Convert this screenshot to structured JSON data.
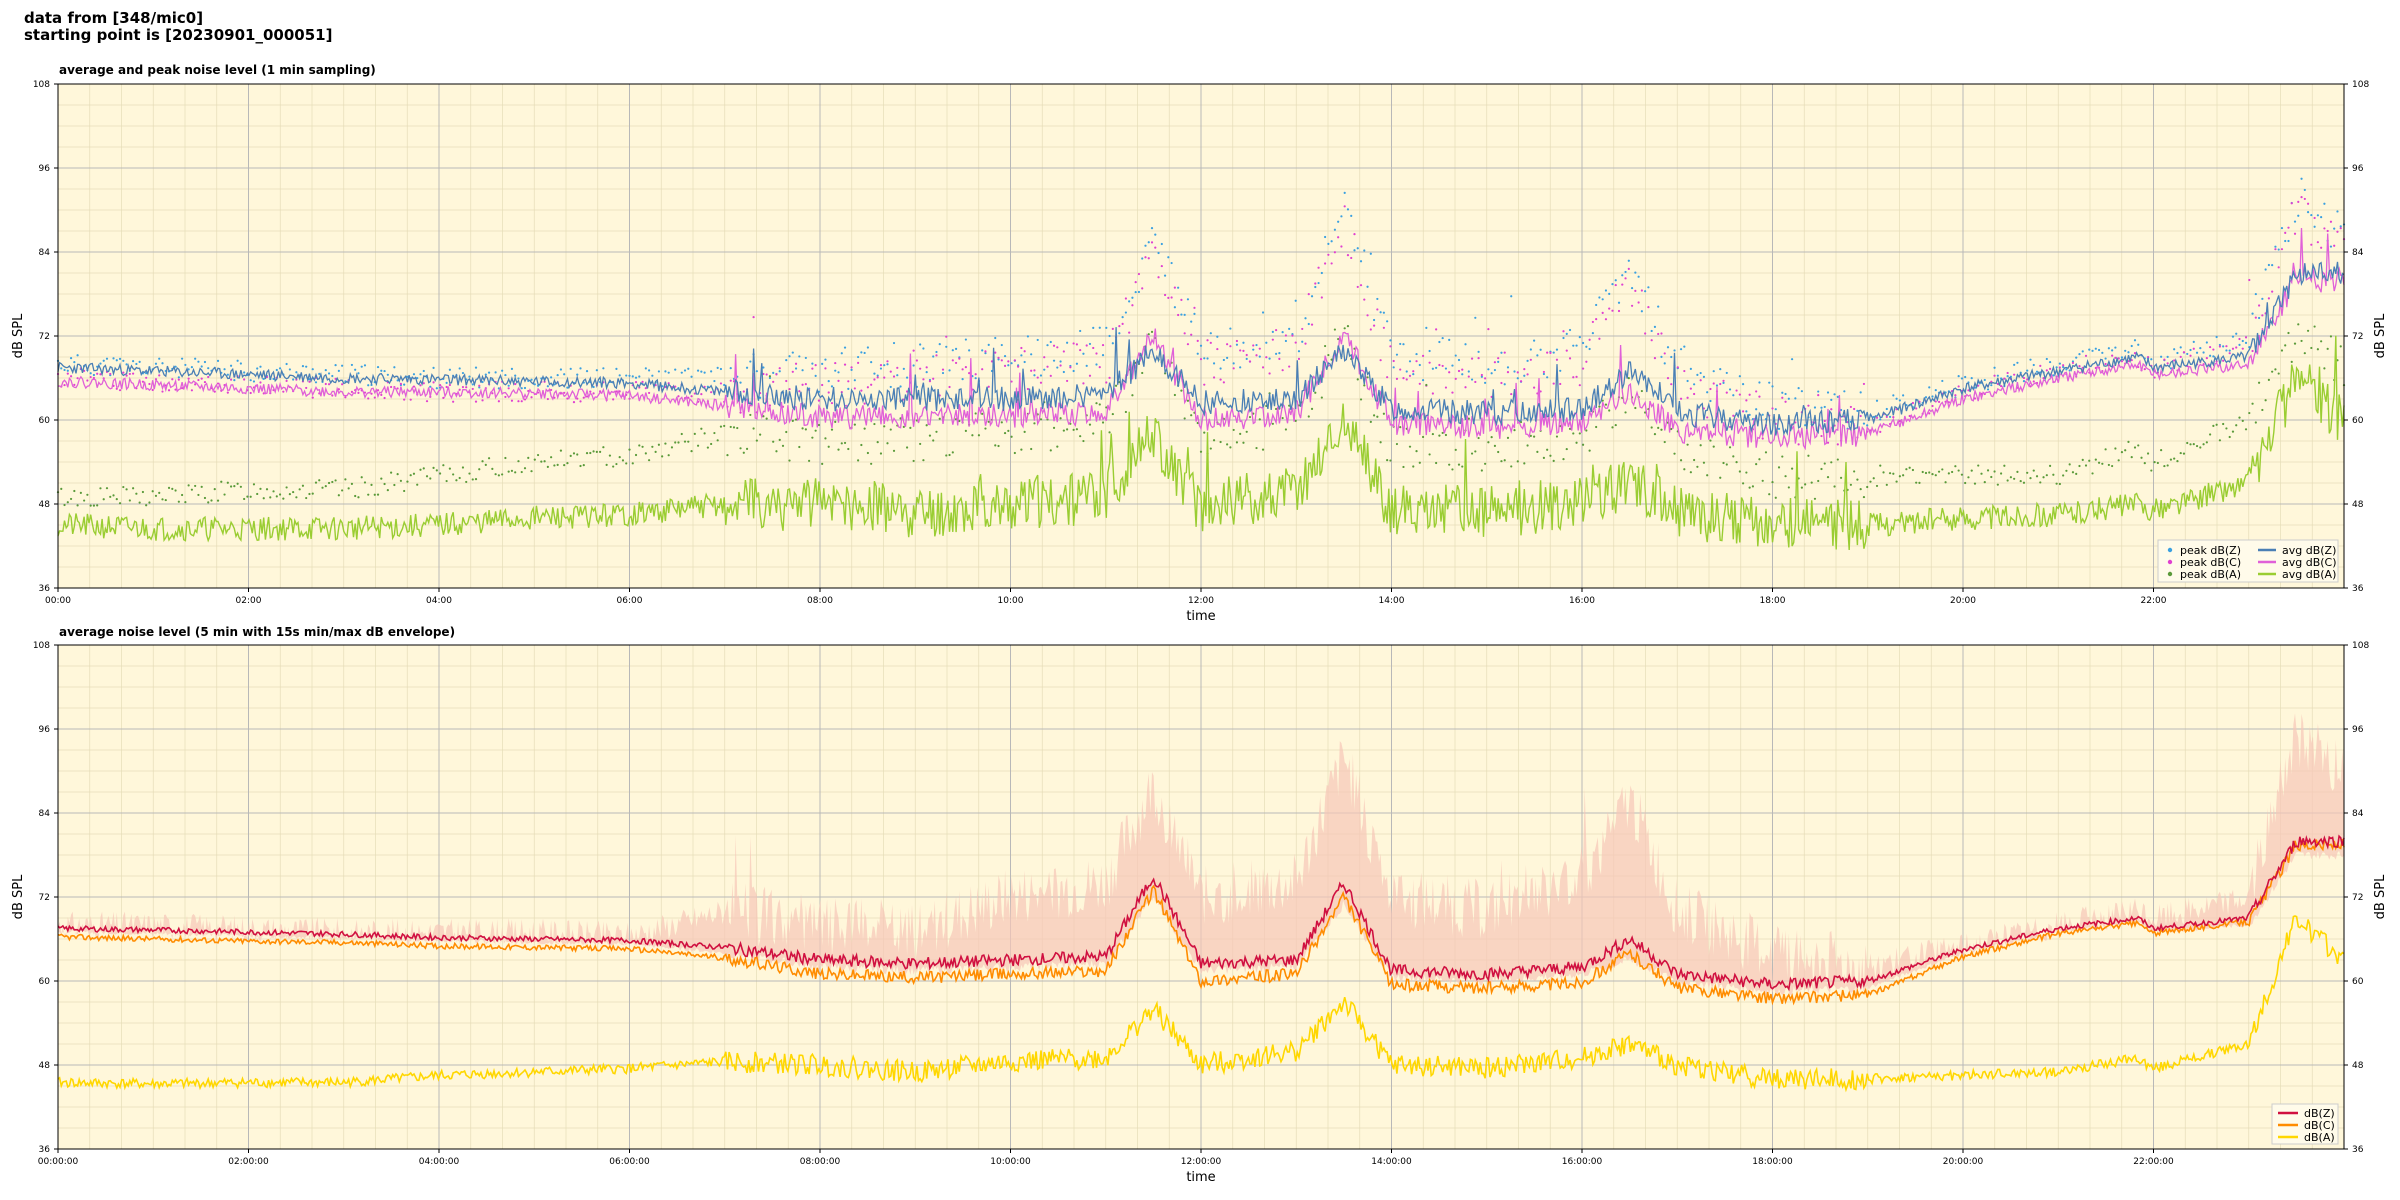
{
  "header": {
    "line1": "data from [348/mic0]",
    "line2": "starting point is [20230901_000051]"
  },
  "colors": {
    "plot_bg": "#fff7da",
    "grid_major": "#b8b8b8",
    "grid_minor": "#e6ddb8",
    "peakZ": "#3aa0e0",
    "peakC": "#e040d0",
    "peakA": "#5a9a3a",
    "avgZ": "#4a7fb5",
    "avgC": "#e060d8",
    "avgA": "#9acd32",
    "z5": "#d01040",
    "c5": "#ff8c00",
    "a5": "#ffd700",
    "envelope": "#f7c6b8"
  },
  "chart_data": [
    {
      "type": "line",
      "title": "average and peak noise level (1 min sampling)",
      "xlabel": "time",
      "ylabel": "dB SPL",
      "ylim": [
        36,
        108
      ],
      "yticks": [
        36,
        48,
        60,
        72,
        84,
        96,
        108
      ],
      "xlim_hours": [
        0,
        24
      ],
      "xticks": [
        "00:00",
        "02:00",
        "04:00",
        "06:00",
        "08:00",
        "10:00",
        "12:00",
        "14:00",
        "16:00",
        "18:00",
        "20:00",
        "22:00"
      ],
      "grid": true,
      "legend_position": "lower-right",
      "legend": [
        "peak dB(Z)",
        "peak dB(C)",
        "peak dB(A)",
        "avg dB(Z)",
        "avg dB(C)",
        "avg dB(A)"
      ],
      "x": [
        "00:00",
        "01:00",
        "02:00",
        "03:00",
        "04:00",
        "05:00",
        "06:00",
        "07:00",
        "08:00",
        "09:00",
        "10:00",
        "11:00",
        "11:30",
        "12:00",
        "13:00",
        "13:30",
        "14:00",
        "15:00",
        "16:00",
        "16:30",
        "17:00",
        "18:00",
        "19:00",
        "20:00",
        "21:00",
        "21:50",
        "22:00",
        "23:00",
        "23:30",
        "24:00"
      ],
      "series": [
        {
          "name": "avg dB(Z)",
          "values": [
            67.5,
            67,
            66.5,
            66,
            65.8,
            65.5,
            65.3,
            64,
            63,
            63,
            63,
            63.5,
            70,
            62.5,
            63,
            70,
            61.5,
            61,
            61.5,
            67,
            61,
            59.5,
            60,
            64.5,
            67,
            69,
            67.5,
            69,
            81,
            81
          ]
        },
        {
          "name": "avg dB(C)",
          "values": [
            65.5,
            65,
            64.5,
            64,
            64,
            63.8,
            63.5,
            62,
            60.5,
            60.5,
            60.5,
            61,
            72,
            60,
            61,
            72,
            59.5,
            59,
            59.5,
            64,
            58.5,
            57.5,
            58,
            63,
            66,
            68,
            66.5,
            68,
            80,
            80
          ]
        },
        {
          "name": "avg dB(A)",
          "values": [
            45,
            44.5,
            44.5,
            44.5,
            45,
            46,
            46.5,
            48,
            48,
            47,
            48,
            49,
            58,
            47.5,
            50,
            60,
            47,
            47,
            48,
            51,
            47,
            45,
            45,
            46,
            46.5,
            48,
            47,
            51,
            66,
            60
          ]
        },
        {
          "name": "peak dB(Z)",
          "values": [
            68,
            67.5,
            67,
            66.5,
            66,
            66,
            66,
            66,
            67,
            68,
            69,
            70,
            85,
            70,
            72,
            90,
            69,
            68,
            70,
            82,
            67,
            62,
            61,
            65,
            68,
            70,
            68,
            72,
            92,
            86
          ]
        },
        {
          "name": "peak dB(C)",
          "values": [
            66,
            65.5,
            65,
            64.5,
            64,
            64,
            64,
            64,
            65,
            66,
            67,
            68,
            83,
            68,
            70,
            88,
            67,
            66,
            68,
            80,
            65,
            60,
            59,
            64,
            67,
            69,
            67,
            71,
            90,
            84
          ]
        },
        {
          "name": "peak dB(A)",
          "values": [
            49,
            49,
            50,
            50,
            52,
            54,
            55,
            58,
            57,
            57,
            58,
            60,
            70,
            57,
            60,
            72,
            56,
            56,
            58,
            63,
            56,
            52,
            52,
            52,
            52,
            56,
            54,
            60,
            72,
            68
          ]
        }
      ]
    },
    {
      "type": "line",
      "title": "average noise level (5 min with 15s min/max dB envelope)",
      "xlabel": "time",
      "ylabel": "dB SPL",
      "ylim": [
        36,
        108
      ],
      "yticks": [
        36,
        48,
        60,
        72,
        84,
        96,
        108
      ],
      "xlim_hours": [
        0,
        24
      ],
      "xticks": [
        "00:00:00",
        "02:00:00",
        "04:00:00",
        "06:00:00",
        "08:00:00",
        "10:00:00",
        "12:00:00",
        "14:00:00",
        "16:00:00",
        "18:00:00",
        "20:00:00",
        "22:00:00"
      ],
      "grid": true,
      "legend_position": "lower-right",
      "legend": [
        "dB(Z)",
        "dB(C)",
        "dB(A)"
      ],
      "x": [
        "00:00",
        "01:00",
        "02:00",
        "03:00",
        "04:00",
        "05:00",
        "06:00",
        "07:00",
        "08:00",
        "09:00",
        "10:00",
        "11:00",
        "11:30",
        "12:00",
        "13:00",
        "13:30",
        "14:00",
        "15:00",
        "16:00",
        "16:30",
        "17:00",
        "18:00",
        "19:00",
        "20:00",
        "21:00",
        "21:50",
        "22:00",
        "23:00",
        "23:30",
        "24:00"
      ],
      "series": [
        {
          "name": "dB(Z)",
          "values": [
            67.5,
            67.3,
            67,
            66.7,
            66.2,
            66,
            65.8,
            64.8,
            63,
            62.5,
            63,
            63.5,
            75,
            62.5,
            63,
            74,
            61.5,
            61,
            62,
            66,
            61,
            59.5,
            60,
            64.5,
            67.5,
            69,
            67.5,
            69,
            80,
            80
          ]
        },
        {
          "name": "dB(C)",
          "values": [
            66.3,
            66,
            65.7,
            65.5,
            65,
            64.8,
            64.6,
            63.3,
            61,
            60.5,
            61,
            61.5,
            73,
            60,
            61,
            72,
            59.5,
            59,
            59.8,
            64,
            59,
            57.5,
            58,
            63.5,
            66.8,
            68.3,
            66.8,
            68.5,
            79.5,
            79.5
          ]
        },
        {
          "name": "dB(A)",
          "values": [
            45.5,
            45.3,
            45.5,
            45.5,
            46.5,
            47,
            47.5,
            48.5,
            48,
            47,
            48.5,
            49,
            56,
            48,
            50,
            57,
            48,
            47.5,
            49,
            51,
            48,
            46,
            46,
            46.5,
            47,
            49,
            47.5,
            51,
            69,
            63
          ]
        },
        {
          "name": "envelope max",
          "values": [
            68,
            68,
            67.5,
            67,
            67,
            67,
            66.5,
            70,
            68,
            67,
            72,
            74,
            88,
            72,
            74,
            92,
            72,
            70,
            75,
            86,
            70,
            64,
            62,
            65,
            68,
            70,
            69,
            72,
            95,
            90
          ]
        },
        {
          "name": "envelope min",
          "values": [
            67,
            66.8,
            66.5,
            66.2,
            65.8,
            65.5,
            65.3,
            64,
            62,
            61.5,
            62,
            62.5,
            72,
            61.5,
            62,
            71,
            60.5,
            60,
            61,
            63,
            60,
            58.5,
            59,
            64,
            67,
            68.5,
            67,
            68,
            78,
            78
          ]
        }
      ]
    }
  ]
}
